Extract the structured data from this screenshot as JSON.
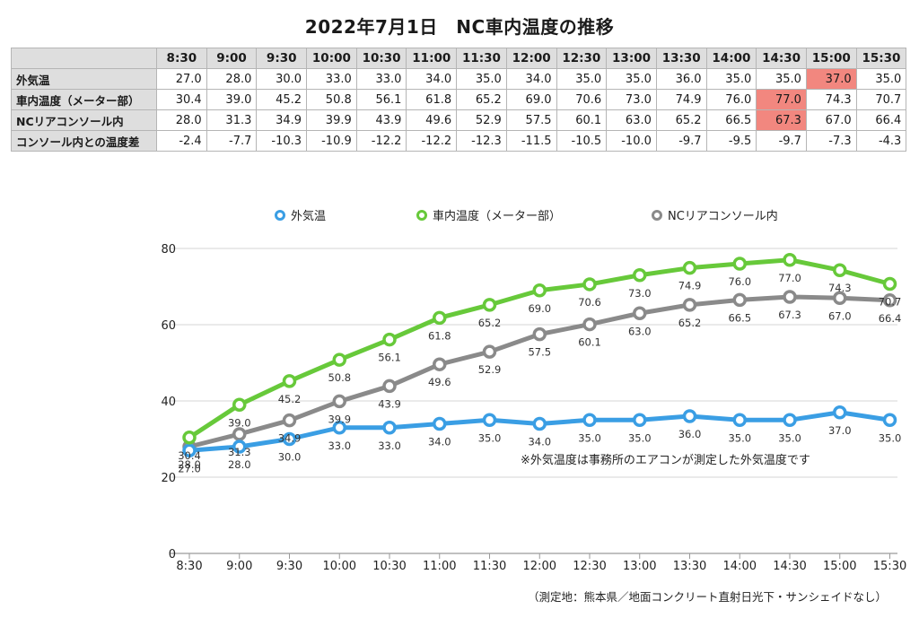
{
  "title": "2022年7月1日　NC車内温度の推移",
  "table": {
    "times": [
      "8:30",
      "9:00",
      "9:30",
      "10:00",
      "10:30",
      "11:00",
      "11:30",
      "12:00",
      "12:30",
      "13:00",
      "13:30",
      "14:00",
      "14:30",
      "15:00",
      "15:30"
    ],
    "rows": [
      {
        "label": "外気温",
        "values": [
          "27.0",
          "28.0",
          "30.0",
          "33.0",
          "33.0",
          "34.0",
          "35.0",
          "34.0",
          "35.0",
          "35.0",
          "36.0",
          "35.0",
          "35.0",
          "37.0",
          "35.0"
        ],
        "highlight": [
          13
        ]
      },
      {
        "label": "車内温度（メーター部）",
        "values": [
          "30.4",
          "39.0",
          "45.2",
          "50.8",
          "56.1",
          "61.8",
          "65.2",
          "69.0",
          "70.6",
          "73.0",
          "74.9",
          "76.0",
          "77.0",
          "74.3",
          "70.7"
        ],
        "highlight": [
          12
        ]
      },
      {
        "label": "NCリアコンソール内",
        "values": [
          "28.0",
          "31.3",
          "34.9",
          "39.9",
          "43.9",
          "49.6",
          "52.9",
          "57.5",
          "60.1",
          "63.0",
          "65.2",
          "66.5",
          "67.3",
          "67.0",
          "66.4"
        ],
        "highlight": [
          12
        ]
      },
      {
        "label": "コンソール内との温度差",
        "values": [
          "-2.4",
          "-7.7",
          "-10.3",
          "-10.9",
          "-12.2",
          "-12.2",
          "-12.3",
          "-11.5",
          "-10.5",
          "-10.0",
          "-9.7",
          "-9.5",
          "-9.7",
          "-7.3",
          "-4.3"
        ],
        "highlight": []
      }
    ],
    "highlight_color": "#f2877f"
  },
  "chart_data": {
    "type": "line",
    "x": [
      "8:30",
      "9:00",
      "9:30",
      "10:00",
      "10:30",
      "11:00",
      "11:30",
      "12:00",
      "12:30",
      "13:00",
      "13:30",
      "14:00",
      "14:30",
      "15:00",
      "15:30"
    ],
    "ylim": [
      0,
      80
    ],
    "yticks": [
      0,
      20,
      40,
      60,
      80
    ],
    "grid": true,
    "legend_position": "top",
    "series": [
      {
        "name": "外気温",
        "color": "#3a9ee4",
        "values": [
          27.0,
          28.0,
          30.0,
          33.0,
          33.0,
          34.0,
          35.0,
          34.0,
          35.0,
          35.0,
          36.0,
          35.0,
          35.0,
          37.0,
          35.0
        ]
      },
      {
        "name": "車内温度（メーター部）",
        "color": "#67c93a",
        "values": [
          30.4,
          39.0,
          45.2,
          50.8,
          56.1,
          61.8,
          65.2,
          69.0,
          70.6,
          73.0,
          74.9,
          76.0,
          77.0,
          74.3,
          70.7
        ]
      },
      {
        "name": "NCリアコンソール内",
        "color": "#8a8a8a",
        "values": [
          28.0,
          31.3,
          34.9,
          39.9,
          43.9,
          49.6,
          52.9,
          57.5,
          60.1,
          63.0,
          65.2,
          66.5,
          67.3,
          67.0,
          66.4
        ]
      }
    ],
    "annotation": "※外気温度は事務所のエアコンが測定した外気温度です"
  },
  "footer_note": "（測定地：熊本県／地面コンクリート直射日光下・サンシェイドなし）"
}
